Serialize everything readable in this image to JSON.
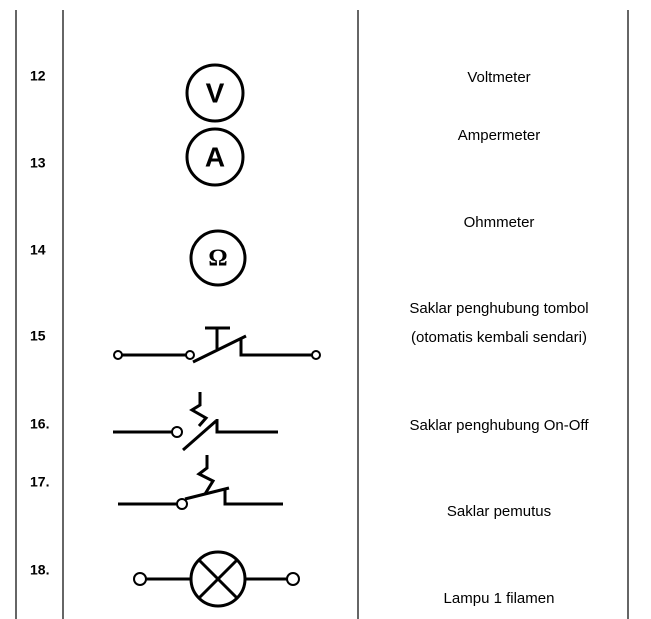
{
  "table": {
    "rows": [
      {
        "number": "12",
        "symbol_label": "V",
        "description": [
          "Voltmeter"
        ]
      },
      {
        "number": "13",
        "symbol_label": "A",
        "description": [
          "Ampermeter"
        ]
      },
      {
        "number": "14",
        "symbol_label": "Ω",
        "description": [
          "Ohmmeter"
        ]
      },
      {
        "number": "15",
        "description": [
          "Saklar penghubung tombol",
          "(otomatis kembali sendari)"
        ]
      },
      {
        "number": "16.",
        "description": [
          "Saklar penghubung On-Off"
        ]
      },
      {
        "number": "17.",
        "description": [
          "Saklar pemutus"
        ]
      },
      {
        "number": "18.",
        "description": [
          "Lampu 1 filamen"
        ]
      }
    ]
  }
}
